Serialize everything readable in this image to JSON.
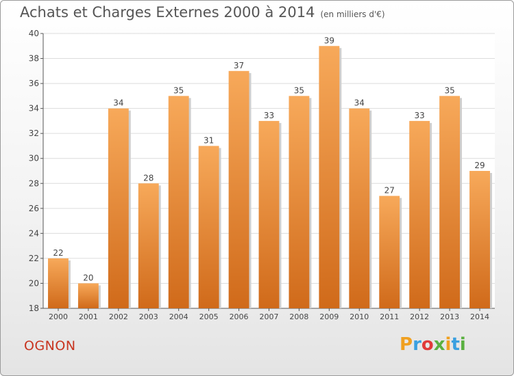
{
  "header": {
    "title": "Achats et Charges Externes 2000 à 2014",
    "unit": "(en milliers d'€)"
  },
  "footer": {
    "commune": "OGNON",
    "brand": "Proxiti",
    "brand_colors": [
      "#f0a020",
      "#3aa0e0",
      "#e03a3a",
      "#5ab040",
      "#f0a020",
      "#3aa0e0",
      "#5ab040"
    ]
  },
  "colors": {
    "bar_top": "#f7a95a",
    "bar_bottom": "#d06a1a",
    "bar_shadow": "#cfcfcf",
    "grid": "#dcdcdc",
    "axis": "#555555",
    "text": "#444444"
  },
  "chart_data": {
    "type": "bar",
    "title": "Achats et Charges Externes 2000 à 2014",
    "subtitle": "(en milliers d'€)",
    "categories": [
      "2000",
      "2001",
      "2002",
      "2003",
      "2004",
      "2005",
      "2006",
      "2007",
      "2008",
      "2009",
      "2010",
      "2011",
      "2012",
      "2013",
      "2014"
    ],
    "values": [
      22,
      20,
      34,
      28,
      35,
      31,
      37,
      33,
      35,
      39,
      34,
      27,
      33,
      35,
      29
    ],
    "ylim": [
      18,
      40
    ],
    "yticks": [
      18,
      20,
      22,
      24,
      26,
      28,
      30,
      32,
      34,
      36,
      38,
      40
    ],
    "grid": true,
    "data_labels": true
  }
}
